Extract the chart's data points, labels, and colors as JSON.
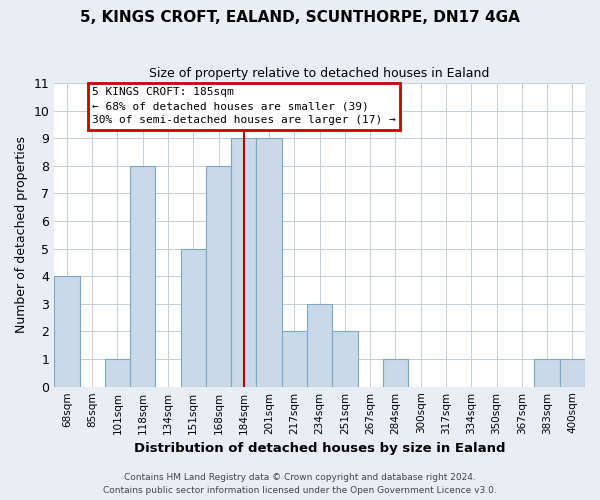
{
  "title": "5, KINGS CROFT, EALAND, SCUNTHORPE, DN17 4GA",
  "subtitle": "Size of property relative to detached houses in Ealand",
  "xlabel": "Distribution of detached houses by size in Ealand",
  "ylabel": "Number of detached properties",
  "bin_labels": [
    "68sqm",
    "85sqm",
    "101sqm",
    "118sqm",
    "134sqm",
    "151sqm",
    "168sqm",
    "184sqm",
    "201sqm",
    "217sqm",
    "234sqm",
    "251sqm",
    "267sqm",
    "284sqm",
    "300sqm",
    "317sqm",
    "334sqm",
    "350sqm",
    "367sqm",
    "383sqm",
    "400sqm"
  ],
  "bar_heights": [
    4,
    0,
    1,
    8,
    0,
    5,
    8,
    9,
    9,
    2,
    3,
    2,
    0,
    1,
    0,
    0,
    0,
    0,
    0,
    1,
    1
  ],
  "bar_facecolor": "#c9d9e8",
  "bar_edgecolor": "#7ba8c8",
  "highlight_bar_index": 7,
  "highlight_line_color": "#c00000",
  "ylim": [
    0,
    11
  ],
  "yticks": [
    0,
    1,
    2,
    3,
    4,
    5,
    6,
    7,
    8,
    9,
    10,
    11
  ],
  "annotation_title": "5 KINGS CROFT: 185sqm",
  "annotation_line1": "← 68% of detached houses are smaller (39)",
  "annotation_line2": "30% of semi-detached houses are larger (17) →",
  "annotation_box_color": "#ffffff",
  "annotation_box_edge": "#cc0000",
  "footer_line1": "Contains HM Land Registry data © Crown copyright and database right 2024.",
  "footer_line2": "Contains public sector information licensed under the Open Government Licence v3.0.",
  "background_color": "#e8eef4",
  "plot_background_color": "#ffffff",
  "grid_color": "#c5cfd8"
}
